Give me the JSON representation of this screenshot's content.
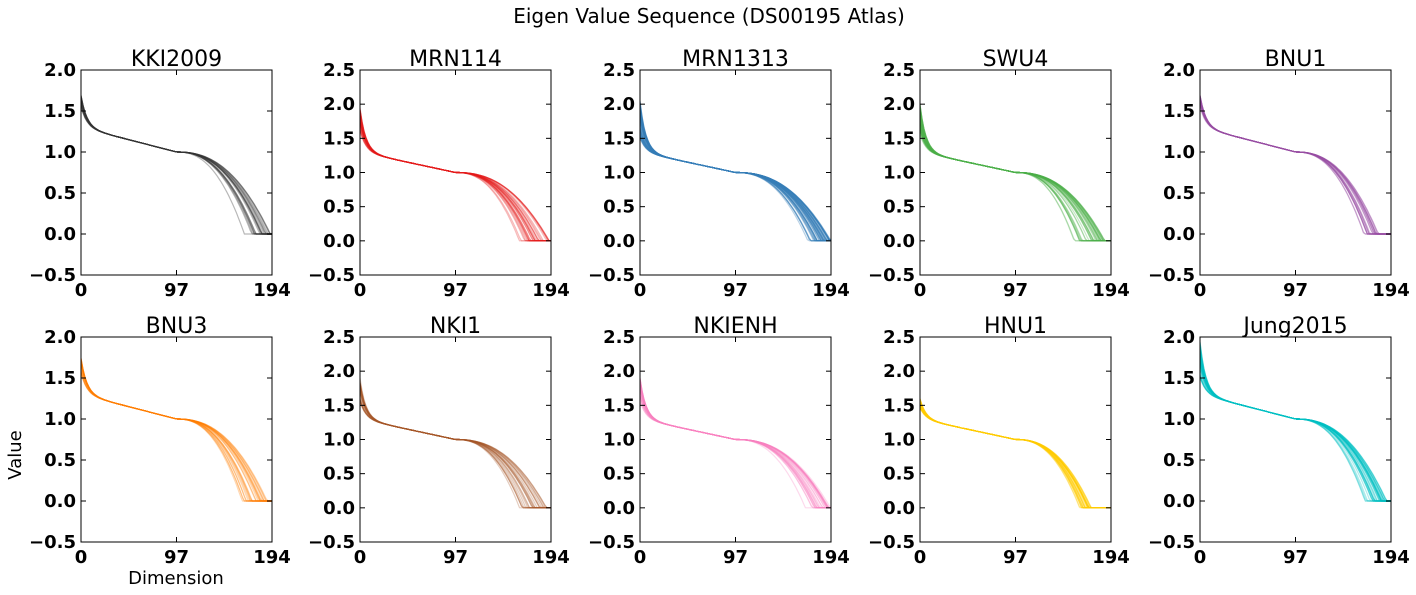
{
  "figure": {
    "title": "Eigen Value Sequence (DS00195 Atlas)",
    "ylabel": "Value",
    "xlabel": "Dimension"
  },
  "chart_data": [
    {
      "type": "line",
      "title": "KKI2009",
      "color": "#333333",
      "xlim": [
        0,
        194
      ],
      "ylim": [
        -0.5,
        2.0
      ],
      "xticks": [
        0,
        97,
        194
      ],
      "yticks": [
        -0.5,
        0.0,
        0.5,
        1.0,
        1.5,
        2.0
      ],
      "start_range": [
        1.55,
        1.7
      ],
      "end_x": [
        160,
        194
      ],
      "series_alpha": 0.35,
      "series_count": 22
    },
    {
      "type": "line",
      "title": "MRN114",
      "color": "#e41a1c",
      "xlim": [
        0,
        194
      ],
      "ylim": [
        -0.5,
        2.5
      ],
      "xticks": [
        0,
        97,
        194
      ],
      "yticks": [
        -0.5,
        0.0,
        0.5,
        1.0,
        1.5,
        2.0,
        2.5
      ],
      "start_range": [
        1.6,
        1.95
      ],
      "end_x": [
        155,
        194
      ],
      "series_alpha": 0.3,
      "series_count": 30
    },
    {
      "type": "line",
      "title": "MRN1313",
      "color": "#377eb8",
      "xlim": [
        0,
        194
      ],
      "ylim": [
        -0.5,
        2.5
      ],
      "xticks": [
        0,
        97,
        194
      ],
      "yticks": [
        -0.5,
        0.0,
        0.5,
        1.0,
        1.5,
        2.0,
        2.5
      ],
      "start_range": [
        1.5,
        2.05
      ],
      "end_x": [
        170,
        194
      ],
      "series_alpha": 0.35,
      "series_count": 55
    },
    {
      "type": "line",
      "title": "SWU4",
      "color": "#4daf4a",
      "xlim": [
        0,
        194
      ],
      "ylim": [
        -0.5,
        2.5
      ],
      "xticks": [
        0,
        97,
        194
      ],
      "yticks": [
        -0.5,
        0.0,
        0.5,
        1.0,
        1.5,
        2.0,
        2.5
      ],
      "start_range": [
        1.55,
        2.0
      ],
      "end_x": [
        155,
        188
      ],
      "series_alpha": 0.3,
      "series_count": 40
    },
    {
      "type": "line",
      "title": "BNU1",
      "color": "#984ea3",
      "xlim": [
        0,
        194
      ],
      "ylim": [
        -0.5,
        2.0
      ],
      "xticks": [
        0,
        97,
        194
      ],
      "yticks": [
        -0.5,
        0.0,
        0.5,
        1.0,
        1.5,
        2.0
      ],
      "start_range": [
        1.55,
        1.7
      ],
      "end_x": [
        165,
        182
      ],
      "series_alpha": 0.35,
      "series_count": 22
    },
    {
      "type": "line",
      "title": "BNU3",
      "color": "#ff7f00",
      "xlim": [
        0,
        194
      ],
      "ylim": [
        -0.5,
        2.0
      ],
      "xticks": [
        0,
        97,
        194
      ],
      "yticks": [
        -0.5,
        0.0,
        0.5,
        1.0,
        1.5,
        2.0
      ],
      "start_range": [
        1.55,
        1.75
      ],
      "end_x": [
        160,
        190
      ],
      "series_alpha": 0.3,
      "series_count": 25
    },
    {
      "type": "line",
      "title": "NKI1",
      "color": "#a65628",
      "xlim": [
        0,
        194
      ],
      "ylim": [
        -0.5,
        2.5
      ],
      "xticks": [
        0,
        97,
        194
      ],
      "yticks": [
        -0.5,
        0.0,
        0.5,
        1.0,
        1.5,
        2.0,
        2.5
      ],
      "start_range": [
        1.55,
        1.9
      ],
      "end_x": [
        160,
        190
      ],
      "series_alpha": 0.3,
      "series_count": 25
    },
    {
      "type": "line",
      "title": "NKIENH",
      "color": "#f781bf",
      "xlim": [
        0,
        194
      ],
      "ylim": [
        -0.5,
        2.5
      ],
      "xticks": [
        0,
        97,
        194
      ],
      "yticks": [
        -0.5,
        0.0,
        0.5,
        1.0,
        1.5,
        2.0,
        2.5
      ],
      "start_range": [
        1.55,
        1.95
      ],
      "end_x": [
        165,
        194
      ],
      "series_alpha": 0.3,
      "series_count": 30
    },
    {
      "type": "line",
      "title": "HNU1",
      "color": "#ffcc00",
      "xlim": [
        0,
        194
      ],
      "ylim": [
        -0.5,
        2.5
      ],
      "xticks": [
        0,
        97,
        194
      ],
      "yticks": [
        -0.5,
        0.0,
        0.5,
        1.0,
        1.5,
        2.0,
        2.5
      ],
      "start_range": [
        1.45,
        1.6
      ],
      "end_x": [
        160,
        175
      ],
      "series_alpha": 0.35,
      "series_count": 30
    },
    {
      "type": "line",
      "title": "Jung2015",
      "color": "#00bfc4",
      "xlim": [
        0,
        194
      ],
      "ylim": [
        -0.5,
        2.0
      ],
      "xticks": [
        0,
        97,
        194
      ],
      "yticks": [
        -0.5,
        0.0,
        0.5,
        1.0,
        1.5,
        2.0
      ],
      "start_range": [
        1.5,
        1.95
      ],
      "end_x": [
        165,
        190
      ],
      "series_alpha": 0.3,
      "series_count": 40
    }
  ]
}
